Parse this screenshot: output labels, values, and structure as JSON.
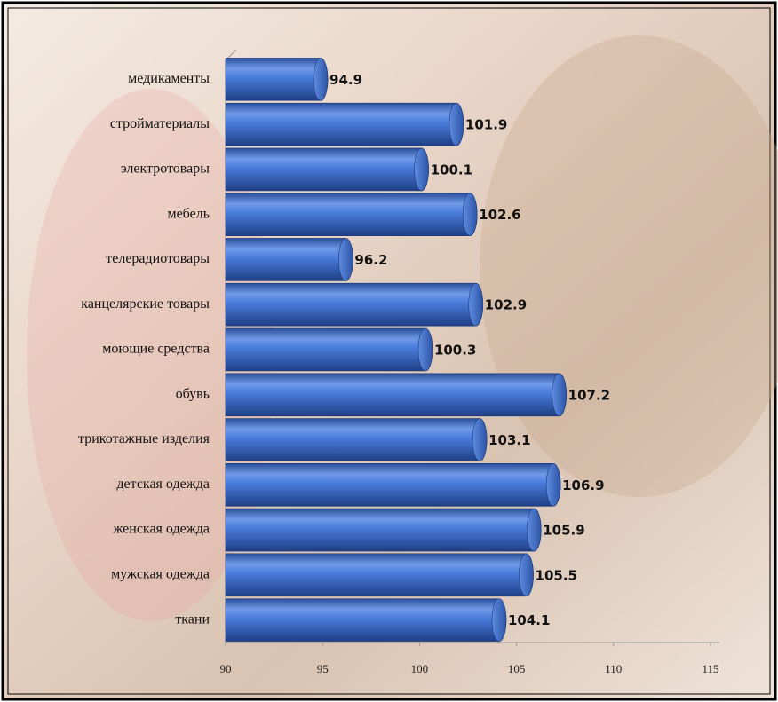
{
  "chart_data": {
    "type": "bar",
    "orientation": "horizontal",
    "categories": [
      "медикаменты",
      "стройматериалы",
      "электротовары",
      "мебель",
      "телерадиотовары",
      "канцелярские товары",
      "моющие средства",
      "обувь",
      "трикотажные изделия",
      "детская одежда",
      "женская одежда",
      "мужская одежда",
      "ткани"
    ],
    "values": [
      94.9,
      101.9,
      100.1,
      102.6,
      96.2,
      102.9,
      100.3,
      107.2,
      103.1,
      106.9,
      105.9,
      105.5,
      104.1
    ],
    "color": "#3a6fd0",
    "xlim": [
      90,
      115
    ],
    "xticks": [
      90,
      95,
      100,
      105,
      110,
      115
    ],
    "grid": false
  }
}
